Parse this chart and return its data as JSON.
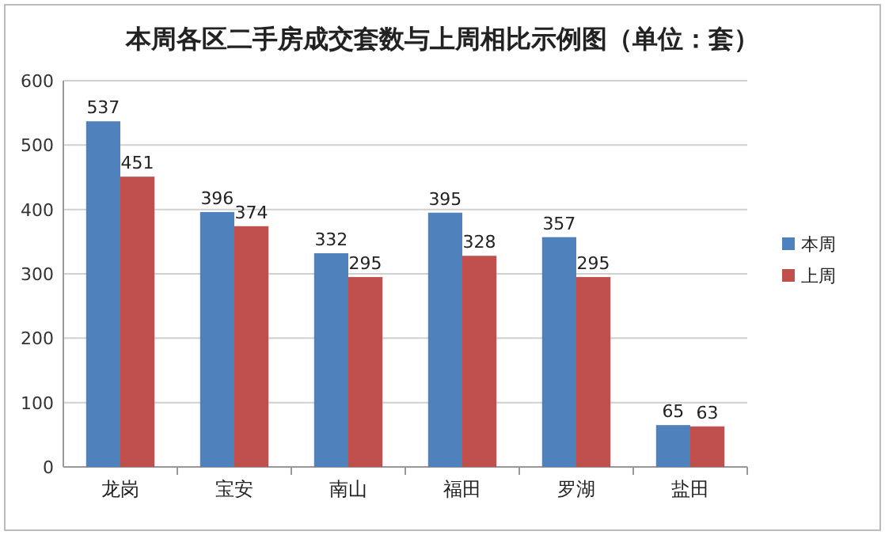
{
  "chart_data": {
    "type": "bar",
    "title": "本周各区二手房成交套数与上周相比示例图（单位：套）",
    "categories": [
      "龙岗",
      "宝安",
      "南山",
      "福田",
      "罗湖",
      "盐田"
    ],
    "series": [
      {
        "name": "本周",
        "color": "#4f81bd",
        "values": [
          537,
          396,
          332,
          395,
          357,
          65
        ]
      },
      {
        "name": "上周",
        "color": "#c0504d",
        "values": [
          451,
          374,
          295,
          328,
          295,
          63
        ]
      }
    ],
    "ylim": [
      0,
      600
    ],
    "yticks": [
      0,
      100,
      200,
      300,
      400,
      500,
      600
    ],
    "grid": "y",
    "legend": "right",
    "data_labels": true
  }
}
